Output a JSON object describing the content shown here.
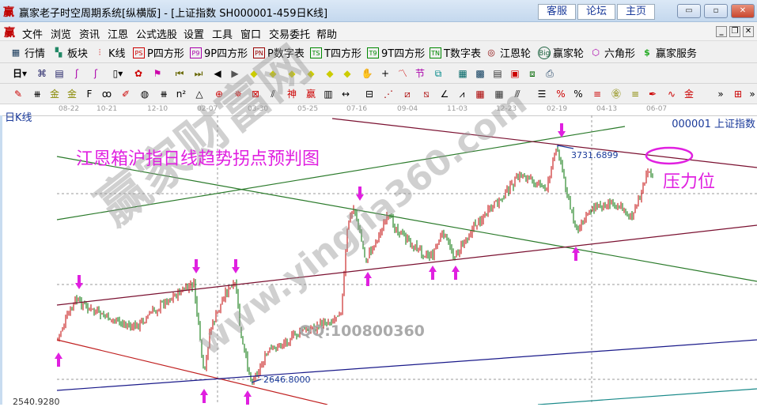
{
  "window": {
    "title": "赢家老子时空周期系统[纵横版] - [上证指数  SH000001-459日K线]",
    "links": [
      "客服",
      "论坛",
      "主页"
    ],
    "controls": [
      "minimize",
      "maximize",
      "close"
    ]
  },
  "menu": {
    "items": [
      "文件",
      "浏览",
      "资讯",
      "江恩",
      "公式选股",
      "设置",
      "工具",
      "窗口",
      "交易委托",
      "帮助"
    ]
  },
  "toolbar1": {
    "items": [
      {
        "icon": "table-icon",
        "label": "行情"
      },
      {
        "icon": "blocks-icon",
        "label": "板块"
      },
      {
        "icon": "candles-icon",
        "label": "K线"
      },
      {
        "icon": "PS",
        "label": "P四方形"
      },
      {
        "icon": "P9",
        "label": "9P四方形"
      },
      {
        "icon": "PN",
        "label": "P数字表"
      },
      {
        "icon": "TS",
        "label": "T四方形"
      },
      {
        "icon": "T9",
        "label": "9T四方形"
      },
      {
        "icon": "TN",
        "label": "T数字表"
      },
      {
        "icon": "target-icon",
        "label": "江恩轮"
      },
      {
        "icon": "Big",
        "label": "赢家轮"
      },
      {
        "icon": "hexagon-icon",
        "label": "六角形"
      },
      {
        "icon": "dollar-icon",
        "label": "赢家服务"
      }
    ]
  },
  "toolbar2": {
    "period": "日"
  },
  "chart": {
    "period_label": "日K线",
    "symbol": "000001 上证指数",
    "date_ticks": [
      "08-22",
      "10-21",
      "12-10",
      "02-07",
      "03-30",
      "05-25",
      "07-16",
      "09-04",
      "11-03",
      "12-23",
      "02-19",
      "04-13",
      "06-07"
    ],
    "title": "江恩箱沪指日线趋势拐点预判图",
    "high_label": "3731.6899",
    "low_label": "2646.8000",
    "bottom_label": "2540.9280",
    "resistance_label": "压力位",
    "qq": "QQ:100800360",
    "watermark": "赢家财富网",
    "watermark_url": "www.yingjia360.com",
    "colors": {
      "up": "#c00000",
      "down": "#007000",
      "annotation": "#e020e0",
      "value_text": "#1a3a9a"
    }
  },
  "chart_data": {
    "type": "candlestick",
    "high": 3731.6899,
    "low": 2646.8,
    "axis_min": 2540.928
  }
}
